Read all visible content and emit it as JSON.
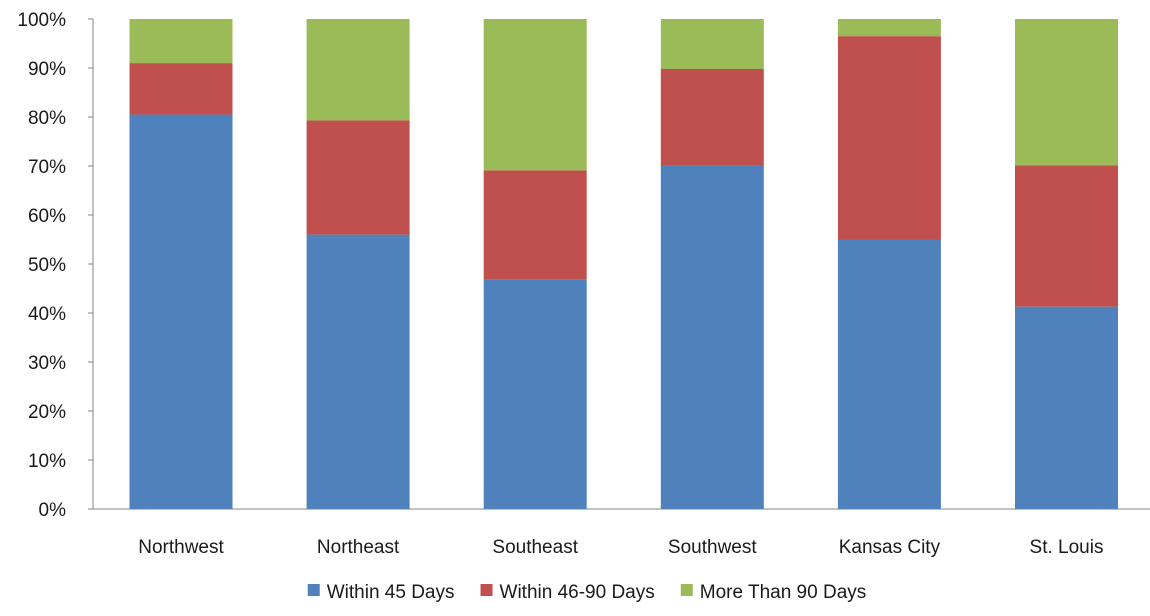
{
  "chart_data": {
    "type": "bar",
    "stacked": true,
    "normalized": true,
    "categories": [
      "Northwest",
      "Northeast",
      "Southeast",
      "Southwest",
      "Kansas City",
      "St. Louis"
    ],
    "series": [
      {
        "name": "Within 45 Days",
        "color": "#4F81BD",
        "values": [
          80.5,
          56.0,
          46.8,
          70.2,
          55.0,
          41.3
        ]
      },
      {
        "name": "Within 46-90 Days",
        "color": "#C0504D",
        "values": [
          10.5,
          23.3,
          22.3,
          19.6,
          41.5,
          28.8
        ]
      },
      {
        "name": "More Than 90 Days",
        "color": "#9BBB59",
        "values": [
          9.0,
          20.7,
          30.9,
          10.2,
          3.5,
          29.9
        ]
      }
    ],
    "ylim": [
      0,
      100
    ],
    "yticks": [
      0,
      10,
      20,
      30,
      40,
      50,
      60,
      70,
      80,
      90,
      100
    ],
    "ytick_labels": [
      "0%",
      "10%",
      "20%",
      "30%",
      "40%",
      "50%",
      "60%",
      "70%",
      "80%",
      "90%",
      "100%"
    ],
    "title": "",
    "xlabel": "",
    "ylabel": "",
    "grid": false,
    "legend_position": "bottom"
  }
}
